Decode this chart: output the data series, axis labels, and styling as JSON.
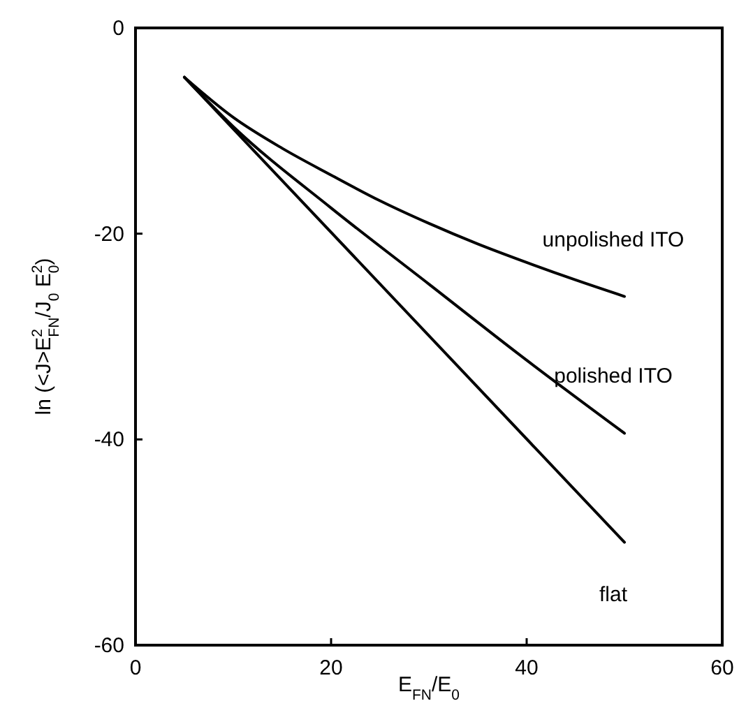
{
  "chart_data": {
    "type": "line",
    "xlabel": "E$_{FN}$/E$_{0}$",
    "ylabel": "ln (<J>E$^{2}$$_{FN}$/J$_{0}$ E$^{2}$$_{0}$)",
    "xlim": [
      0,
      60
    ],
    "xticks": [
      0,
      20,
      40,
      60
    ],
    "ylim": [
      -60,
      0
    ],
    "yticks": [
      -60,
      -40,
      -20,
      0
    ],
    "grid": false,
    "legend": false,
    "marker": "none",
    "line_style": "solid",
    "series": [
      {
        "name": "unpolished ITO",
        "color": "#000000",
        "x": [
          5,
          10,
          15,
          20,
          25,
          30,
          35,
          40,
          45,
          50
        ],
        "values": [
          -4.8,
          -8.7,
          -11.7,
          -14.3,
          -16.8,
          -19.0,
          -21.0,
          -22.8,
          -24.5,
          -26.1
        ]
      },
      {
        "name": "polished ITO",
        "color": "#000000",
        "x": [
          5,
          10,
          20,
          30,
          40,
          50
        ],
        "values": [
          -4.8,
          -9.6,
          -17.5,
          -24.9,
          -32.3,
          -39.4
        ]
      },
      {
        "name": "flat",
        "color": "#000000",
        "x": [
          5,
          50
        ],
        "values": [
          -4.8,
          -50
        ]
      }
    ]
  }
}
